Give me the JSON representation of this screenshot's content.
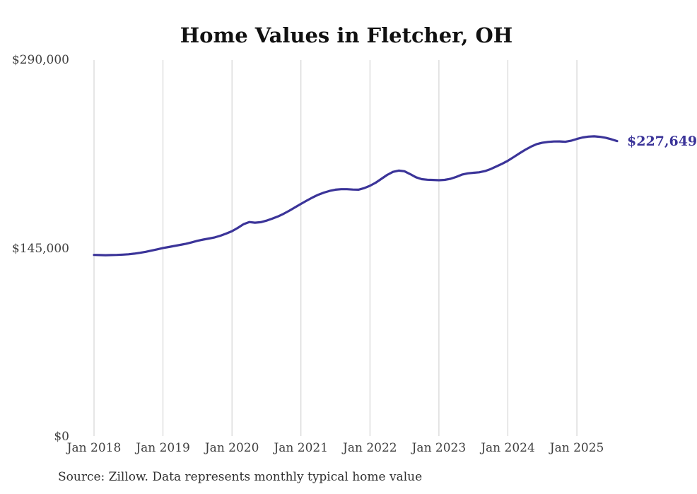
{
  "chart_data": {
    "type": "line",
    "title": "Home Values in Fletcher, OH",
    "source_note": "Source: Zillow. Data represents monthly typical home value",
    "xlabel": "",
    "ylabel": "",
    "ylim": [
      0,
      290000
    ],
    "grid": "vertical-only",
    "legend_position": "none",
    "line_color": "#3b3499",
    "grid_color": "#cccccc",
    "text_color": "#404040",
    "end_label": "$227,649",
    "end_value": 227649,
    "y_ticks": [
      {
        "value": 290000,
        "label": "$290,000"
      },
      {
        "value": 145000,
        "label": "$145,000"
      },
      {
        "value": 0,
        "label": "$0"
      }
    ],
    "x_ticks": [
      {
        "month_index": 0,
        "label": "Jan 2018"
      },
      {
        "month_index": 12,
        "label": "Jan 2019"
      },
      {
        "month_index": 24,
        "label": "Jan 2020"
      },
      {
        "month_index": 36,
        "label": "Jan 2021"
      },
      {
        "month_index": 48,
        "label": "Jan 2022"
      },
      {
        "month_index": 60,
        "label": "Jan 2023"
      },
      {
        "month_index": 72,
        "label": "Jan 2024"
      },
      {
        "month_index": 84,
        "label": "Jan 2025"
      }
    ],
    "x": [
      "2018-01",
      "2018-02",
      "2018-03",
      "2018-04",
      "2018-05",
      "2018-06",
      "2018-07",
      "2018-08",
      "2018-09",
      "2018-10",
      "2018-11",
      "2018-12",
      "2019-01",
      "2019-02",
      "2019-03",
      "2019-04",
      "2019-05",
      "2019-06",
      "2019-07",
      "2019-08",
      "2019-09",
      "2019-10",
      "2019-11",
      "2019-12",
      "2020-01",
      "2020-02",
      "2020-03",
      "2020-04",
      "2020-05",
      "2020-06",
      "2020-07",
      "2020-08",
      "2020-09",
      "2020-10",
      "2020-11",
      "2020-12",
      "2021-01",
      "2021-02",
      "2021-03",
      "2021-04",
      "2021-05",
      "2021-06",
      "2021-07",
      "2021-08",
      "2021-09",
      "2021-10",
      "2021-11",
      "2021-12",
      "2022-01",
      "2022-02",
      "2022-03",
      "2022-04",
      "2022-05",
      "2022-06",
      "2022-07",
      "2022-08",
      "2022-09",
      "2022-10",
      "2022-11",
      "2022-12",
      "2023-01",
      "2023-02",
      "2023-03",
      "2023-04",
      "2023-05",
      "2023-06",
      "2023-07",
      "2023-08",
      "2023-09",
      "2023-10",
      "2023-11",
      "2023-12",
      "2024-01",
      "2024-02",
      "2024-03",
      "2024-04",
      "2024-05",
      "2024-06",
      "2024-07",
      "2024-08",
      "2024-09",
      "2024-10",
      "2024-11",
      "2024-12",
      "2025-01",
      "2025-02",
      "2025-03",
      "2025-04",
      "2025-05",
      "2025-06",
      "2025-07",
      "2025-08"
    ],
    "values": [
      140000,
      139900,
      139800,
      139900,
      140000,
      140200,
      140500,
      141000,
      141600,
      142400,
      143300,
      144300,
      145300,
      146100,
      146900,
      147700,
      148600,
      149700,
      150900,
      151800,
      152600,
      153500,
      154800,
      156400,
      158300,
      160800,
      163600,
      165300,
      164800,
      165200,
      166400,
      167900,
      169600,
      171700,
      174100,
      176700,
      179300,
      181800,
      184200,
      186300,
      188000,
      189300,
      190200,
      190600,
      190600,
      190300,
      190200,
      191400,
      193200,
      195600,
      198600,
      201600,
      203900,
      204900,
      204400,
      202200,
      199800,
      198300,
      197900,
      197700,
      197500,
      197800,
      198600,
      200000,
      201800,
      202800,
      203200,
      203600,
      204500,
      206100,
      208100,
      210200,
      212500,
      215300,
      218200,
      220900,
      223300,
      225300,
      226400,
      227000,
      227300,
      227400,
      227100,
      227900,
      229300,
      230400,
      231100,
      231300,
      230900,
      230200,
      229000,
      227649
    ]
  }
}
